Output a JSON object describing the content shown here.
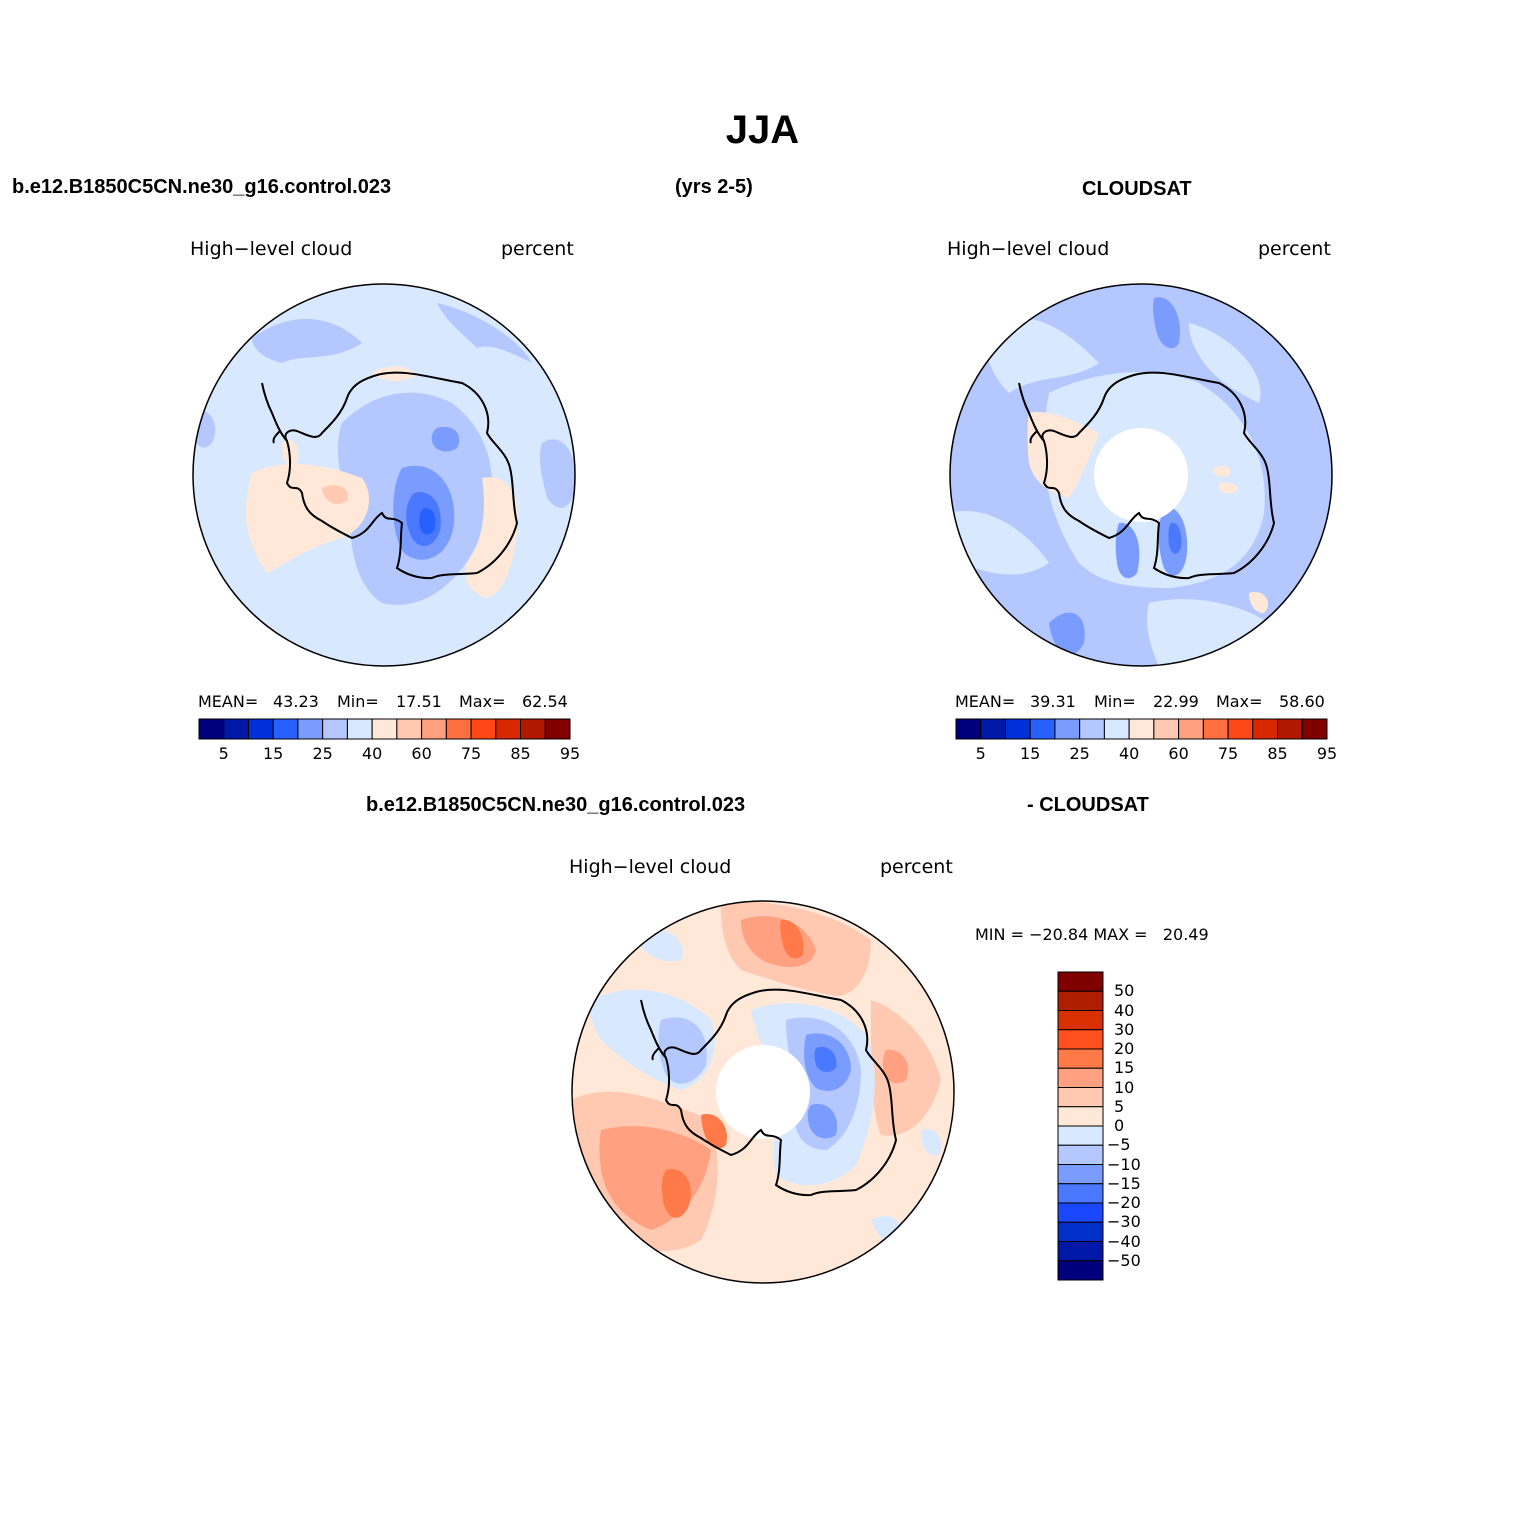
{
  "title": "JJA",
  "panel_model": {
    "case_label": "b.e12.B1850C5CN.ne30_g16.control.023",
    "years_label": "(yrs 2-5)",
    "variable": "High−level cloud",
    "units": "percent",
    "mean_label": "MEAN=",
    "mean": "43.23",
    "min_label": "Min=",
    "min": "17.51",
    "max_label": "Max=",
    "max": "62.54"
  },
  "panel_obs": {
    "case_label": "CLOUDSAT",
    "variable": "High−level cloud",
    "units": "percent",
    "mean_label": "MEAN=",
    "mean": "39.31",
    "min_label": "Min=",
    "min": "22.99",
    "max_label": "Max=",
    "max": "58.60"
  },
  "panel_diff": {
    "case_label_left": "b.e12.B1850C5CN.ne30_g16.control.023",
    "case_label_right": "- CLOUDSAT",
    "variable": "High−level cloud",
    "units": "percent",
    "minmax_label": "MIN = −20.84 MAX =   20.49"
  },
  "colorbar_abs": {
    "colors": [
      "#00007d",
      "#0018a8",
      "#0030d8",
      "#2860ff",
      "#7a9cff",
      "#b4c8ff",
      "#d8e8ff",
      "#ffe8d8",
      "#ffc8b0",
      "#ffa080",
      "#ff7040",
      "#ff4818",
      "#d82800",
      "#b01800",
      "#800000"
    ],
    "ticks": [
      "5",
      "15",
      "25",
      "40",
      "60",
      "75",
      "85",
      "95"
    ]
  },
  "colorbar_diff": {
    "colors": [
      "#800000",
      "#b01e00",
      "#d83000",
      "#ff5020",
      "#ff7a48",
      "#ffa080",
      "#ffc8b0",
      "#ffe8d8",
      "#d8e8ff",
      "#b4c8ff",
      "#7a9cff",
      "#4a78ff",
      "#1a48ff",
      "#0030c8",
      "#0018a8",
      "#00007d"
    ],
    "ticks": [
      "50",
      "40",
      "30",
      "20",
      "15",
      "10",
      "5",
      "0",
      "−5",
      "−10",
      "−15",
      "−20",
      "−30",
      "−40",
      "−50"
    ]
  }
}
